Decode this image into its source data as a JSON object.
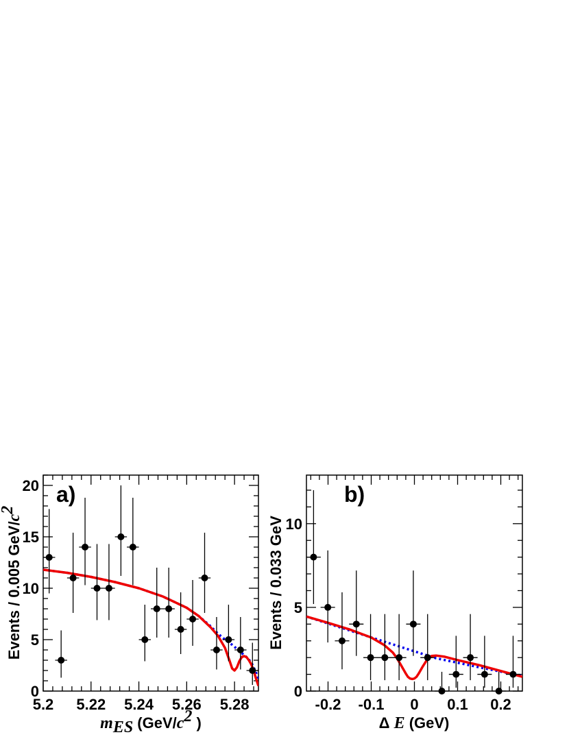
{
  "chart_data": [
    {
      "type": "scatter",
      "panel_label": "a)",
      "xlabel": {
        "var": "m",
        "sub": "ES",
        "unit_pre": " (GeV/",
        "unit_c": "c",
        "unit_sup": "2",
        "unit_post": " )"
      },
      "ylabel": {
        "pre": "Events / 0.005 GeV/",
        "c": "c",
        "sup": "2"
      },
      "xlim": [
        5.2,
        5.29
      ],
      "ylim": [
        0,
        21
      ],
      "xticks": [
        5.2,
        5.22,
        5.24,
        5.26,
        5.28
      ],
      "xtick_labels": [
        "5.2",
        "5.22",
        "5.24",
        "5.26",
        "5.28"
      ],
      "yticks": [
        0,
        5,
        10,
        15,
        20
      ],
      "ytick_labels": [
        "0",
        "5",
        "10",
        "15",
        "20"
      ],
      "bin_halfwidth": 0.0025,
      "points": [
        {
          "x": 5.2025,
          "y": 13,
          "lo": 9.5,
          "hi": 17.7
        },
        {
          "x": 5.2075,
          "y": 3,
          "lo": 1.3,
          "hi": 5.9
        },
        {
          "x": 5.2125,
          "y": 11,
          "lo": 7.6,
          "hi": 15.4
        },
        {
          "x": 5.2175,
          "y": 14,
          "lo": 10.3,
          "hi": 18.8
        },
        {
          "x": 5.2225,
          "y": 10,
          "lo": 6.9,
          "hi": 14.3
        },
        {
          "x": 5.2275,
          "y": 10,
          "lo": 6.9,
          "hi": 14.3
        },
        {
          "x": 5.2325,
          "y": 15,
          "lo": 11.2,
          "hi": 20.0
        },
        {
          "x": 5.2375,
          "y": 14,
          "lo": 10.3,
          "hi": 18.8
        },
        {
          "x": 5.2425,
          "y": 5,
          "lo": 2.9,
          "hi": 8.4
        },
        {
          "x": 5.2475,
          "y": 8,
          "lo": 5.2,
          "hi": 12.0
        },
        {
          "x": 5.2525,
          "y": 8,
          "lo": 5.2,
          "hi": 12.0
        },
        {
          "x": 5.2575,
          "y": 6,
          "lo": 3.6,
          "hi": 9.6
        },
        {
          "x": 5.2625,
          "y": 7,
          "lo": 4.4,
          "hi": 10.8
        },
        {
          "x": 5.2675,
          "y": 11,
          "lo": 7.6,
          "hi": 15.4
        },
        {
          "x": 5.2725,
          "y": 4,
          "lo": 2.1,
          "hi": 7.2
        },
        {
          "x": 5.2775,
          "y": 5,
          "lo": 2.9,
          "hi": 8.4
        },
        {
          "x": 5.2825,
          "y": 4,
          "lo": 2.1,
          "hi": 7.2
        },
        {
          "x": 5.2875,
          "y": 2,
          "lo": 0.6,
          "hi": 4.7
        }
      ],
      "series": [
        {
          "style": "dotted",
          "color": "#0000ee",
          "x": [
            5.2,
            5.21,
            5.22,
            5.23,
            5.24,
            5.25,
            5.26,
            5.265,
            5.27,
            5.273,
            5.276,
            5.279,
            5.282,
            5.285,
            5.287,
            5.289,
            5.29
          ],
          "y": [
            11.8,
            11.5,
            11.1,
            10.6,
            10.0,
            9.2,
            8.1,
            7.3,
            6.3,
            5.6,
            5.0,
            4.5,
            3.9,
            3.3,
            2.8,
            1.8,
            0.8
          ]
        },
        {
          "style": "solid",
          "color": "#ee0000",
          "x": [
            5.2,
            5.21,
            5.22,
            5.23,
            5.24,
            5.25,
            5.26,
            5.265,
            5.27,
            5.273,
            5.276,
            5.278,
            5.279,
            5.28,
            5.281,
            5.282,
            5.283,
            5.284,
            5.285,
            5.286,
            5.287,
            5.288,
            5.289,
            5.29
          ],
          "y": [
            11.8,
            11.5,
            11.1,
            10.6,
            10.0,
            9.2,
            8.1,
            7.3,
            6.2,
            5.4,
            4.2,
            2.9,
            2.2,
            2.0,
            2.3,
            2.9,
            3.3,
            3.4,
            3.3,
            3.0,
            2.6,
            2.0,
            1.2,
            0.5
          ]
        }
      ]
    },
    {
      "type": "scatter",
      "panel_label": "b)",
      "xlabel": {
        "pre": "Δ ",
        "var": "E",
        "unit": " (GeV)"
      },
      "ylabel": {
        "pre": "Events / 0.033 GeV"
      },
      "xlim": [
        -0.25,
        0.25
      ],
      "ylim": [
        0,
        12.9
      ],
      "xticks": [
        -0.2,
        -0.1,
        0,
        0.1,
        0.2
      ],
      "xtick_labels": [
        "-0.2",
        "-0.1",
        "0",
        "0.1",
        "0.2"
      ],
      "yticks": [
        0,
        5,
        10
      ],
      "ytick_labels": [
        "0",
        "5",
        "10"
      ],
      "bin_halfwidth": 0.0167,
      "points": [
        {
          "x": -0.2335,
          "y": 8,
          "lo": 5.2,
          "hi": 12.0
        },
        {
          "x": -0.2005,
          "y": 5,
          "lo": 2.9,
          "hi": 8.4
        },
        {
          "x": -0.1675,
          "y": 3,
          "lo": 1.3,
          "hi": 5.9
        },
        {
          "x": -0.1345,
          "y": 4,
          "lo": 2.1,
          "hi": 7.2
        },
        {
          "x": -0.1015,
          "y": 2,
          "lo": 0.65,
          "hi": 4.6
        },
        {
          "x": -0.0685,
          "y": 2,
          "lo": 0.65,
          "hi": 4.6
        },
        {
          "x": -0.0355,
          "y": 2,
          "lo": 0.65,
          "hi": 4.6
        },
        {
          "x": -0.0025,
          "y": 4,
          "lo": 2.1,
          "hi": 7.2
        },
        {
          "x": 0.0305,
          "y": 2,
          "lo": 0.65,
          "hi": 4.6
        },
        {
          "x": 0.0635,
          "y": 0,
          "lo": 0,
          "hi": 1.15
        },
        {
          "x": 0.0965,
          "y": 1,
          "lo": 0.2,
          "hi": 3.3
        },
        {
          "x": 0.1295,
          "y": 2,
          "lo": 0.65,
          "hi": 4.6
        },
        {
          "x": 0.1625,
          "y": 1,
          "lo": 0.2,
          "hi": 3.3
        },
        {
          "x": 0.1955,
          "y": 0,
          "lo": 0,
          "hi": 1.15
        },
        {
          "x": 0.2285,
          "y": 1,
          "lo": 0.2,
          "hi": 3.3
        }
      ],
      "series": [
        {
          "style": "dotted",
          "color": "#0000ee",
          "x": [
            -0.25,
            -0.15,
            -0.05,
            0.05,
            0.15,
            0.25
          ],
          "y": [
            4.45,
            3.62,
            2.79,
            1.96,
            1.42,
            0.9
          ]
        },
        {
          "style": "solid",
          "color": "#ee0000",
          "x": [
            -0.25,
            -0.2,
            -0.15,
            -0.1,
            -0.07,
            -0.05,
            -0.04,
            -0.03,
            -0.02,
            -0.015,
            -0.01,
            -0.005,
            0,
            0.005,
            0.01,
            0.02,
            0.03,
            0.04,
            0.05,
            0.07,
            0.1,
            0.15,
            0.2,
            0.25
          ],
          "y": [
            4.45,
            4.08,
            3.68,
            3.2,
            2.75,
            2.3,
            1.95,
            1.5,
            1.05,
            0.85,
            0.75,
            0.72,
            0.75,
            0.85,
            1.05,
            1.5,
            1.9,
            2.1,
            2.12,
            2.05,
            1.85,
            1.55,
            1.2,
            0.85
          ]
        }
      ]
    }
  ]
}
